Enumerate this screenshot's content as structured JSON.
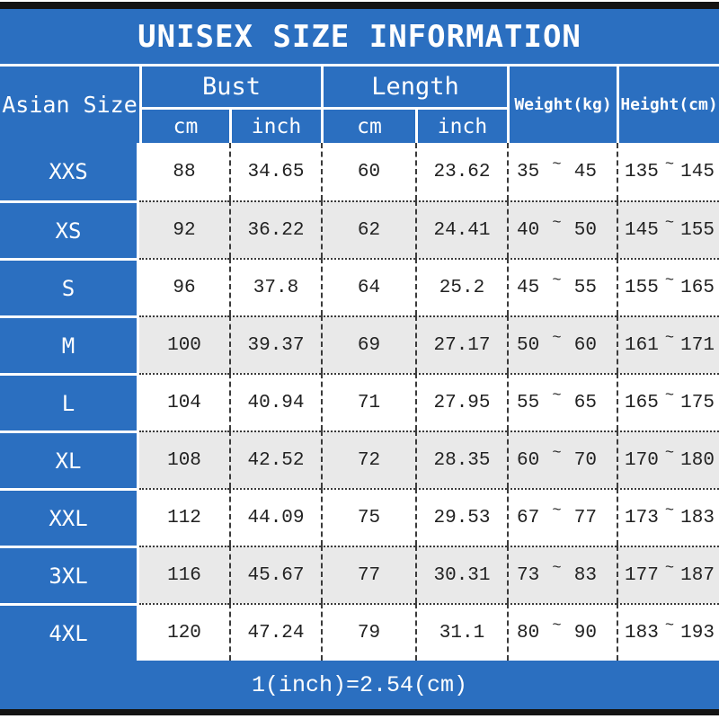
{
  "chart_data": {
    "type": "table",
    "title": "UNISEX SIZE INFORMATION",
    "note": "1(inch)=2.54(cm)",
    "columns": [
      "Asian Size",
      "Bust cm",
      "Bust inch",
      "Length cm",
      "Length inch",
      "Weight(kg)",
      "Height(cm)"
    ],
    "rows": [
      {
        "size": "XXS",
        "bust_cm": "88",
        "bust_inch": "34.65",
        "length_cm": "60",
        "length_inch": "23.62",
        "weight_min": "35",
        "weight_max": "45",
        "height_min": "135",
        "height_max": "145"
      },
      {
        "size": "XS",
        "bust_cm": "92",
        "bust_inch": "36.22",
        "length_cm": "62",
        "length_inch": "24.41",
        "weight_min": "40",
        "weight_max": "50",
        "height_min": "145",
        "height_max": "155"
      },
      {
        "size": "S",
        "bust_cm": "96",
        "bust_inch": "37.8",
        "length_cm": "64",
        "length_inch": "25.2",
        "weight_min": "45",
        "weight_max": "55",
        "height_min": "155",
        "height_max": "165"
      },
      {
        "size": "M",
        "bust_cm": "100",
        "bust_inch": "39.37",
        "length_cm": "69",
        "length_inch": "27.17",
        "weight_min": "50",
        "weight_max": "60",
        "height_min": "161",
        "height_max": "171"
      },
      {
        "size": "L",
        "bust_cm": "104",
        "bust_inch": "40.94",
        "length_cm": "71",
        "length_inch": "27.95",
        "weight_min": "55",
        "weight_max": "65",
        "height_min": "165",
        "height_max": "175"
      },
      {
        "size": "XL",
        "bust_cm": "108",
        "bust_inch": "42.52",
        "length_cm": "72",
        "length_inch": "28.35",
        "weight_min": "60",
        "weight_max": "70",
        "height_min": "170",
        "height_max": "180"
      },
      {
        "size": "XXL",
        "bust_cm": "112",
        "bust_inch": "44.09",
        "length_cm": "75",
        "length_inch": "29.53",
        "weight_min": "67",
        "weight_max": "77",
        "height_min": "173",
        "height_max": "183"
      },
      {
        "size": "3XL",
        "bust_cm": "116",
        "bust_inch": "45.67",
        "length_cm": "77",
        "length_inch": "30.31",
        "weight_min": "73",
        "weight_max": "83",
        "height_min": "177",
        "height_max": "187"
      },
      {
        "size": "4XL",
        "bust_cm": "120",
        "bust_inch": "47.24",
        "length_cm": "79",
        "length_inch": "31.1",
        "weight_min": "80",
        "weight_max": "90",
        "height_min": "183",
        "height_max": "193"
      }
    ]
  },
  "header": {
    "asian_size": "Asian Size",
    "bust": "Bust",
    "length": "Length",
    "cm": "cm",
    "inch": "inch",
    "weight": "Weight(kg)",
    "height": "Height(cm)"
  },
  "symbols": {
    "range_tilde": "~"
  },
  "colors": {
    "primary_blue": "#2b6fc0",
    "alt_row_gray": "#e9e9e9",
    "bar_black": "#141414",
    "grid_dark": "#3b3b3b",
    "text_dark": "#222222"
  }
}
